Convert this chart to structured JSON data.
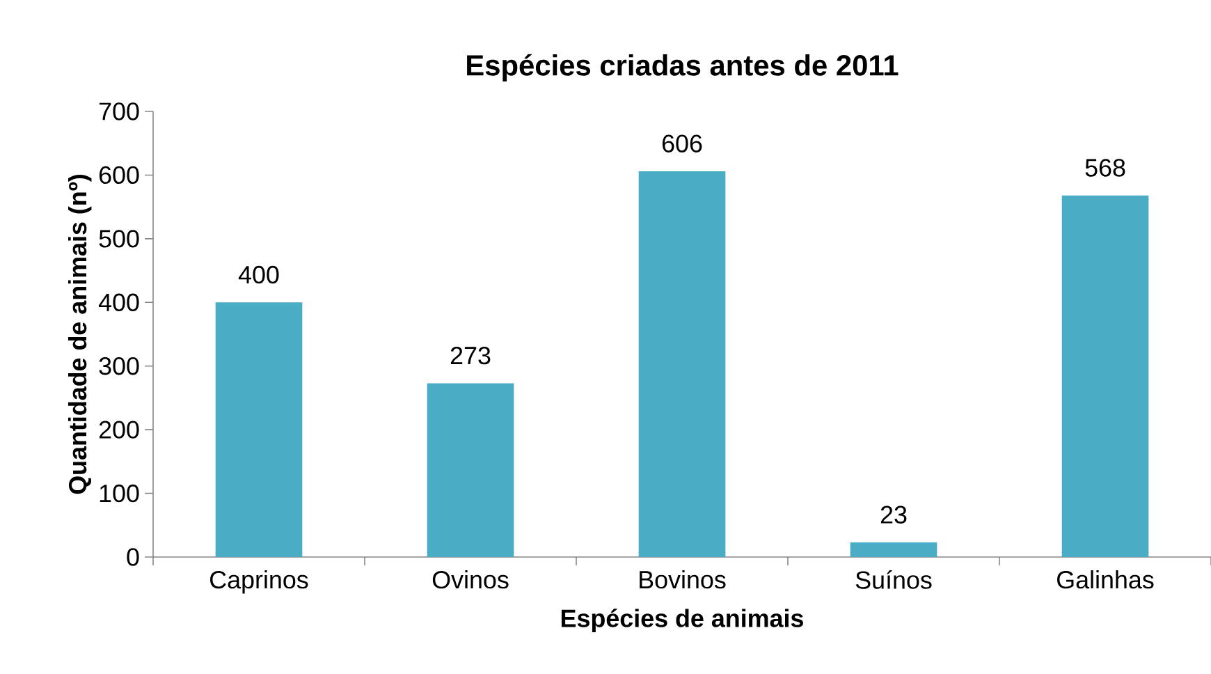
{
  "chart_data": {
    "type": "bar",
    "title": "Espécies criadas  antes de 2011",
    "xlabel": "Espécies de animais",
    "ylabel": "Quantidade de animais (nº)",
    "categories": [
      "Caprinos",
      "Ovinos",
      "Bovinos",
      "Suínos",
      "Galinhas"
    ],
    "values": [
      400,
      273,
      606,
      23,
      568
    ],
    "color": "#4bacc6",
    "ylim": [
      0,
      700
    ],
    "yticks": [
      0,
      100,
      200,
      300,
      400,
      500,
      600,
      700
    ],
    "data_labels": true
  }
}
